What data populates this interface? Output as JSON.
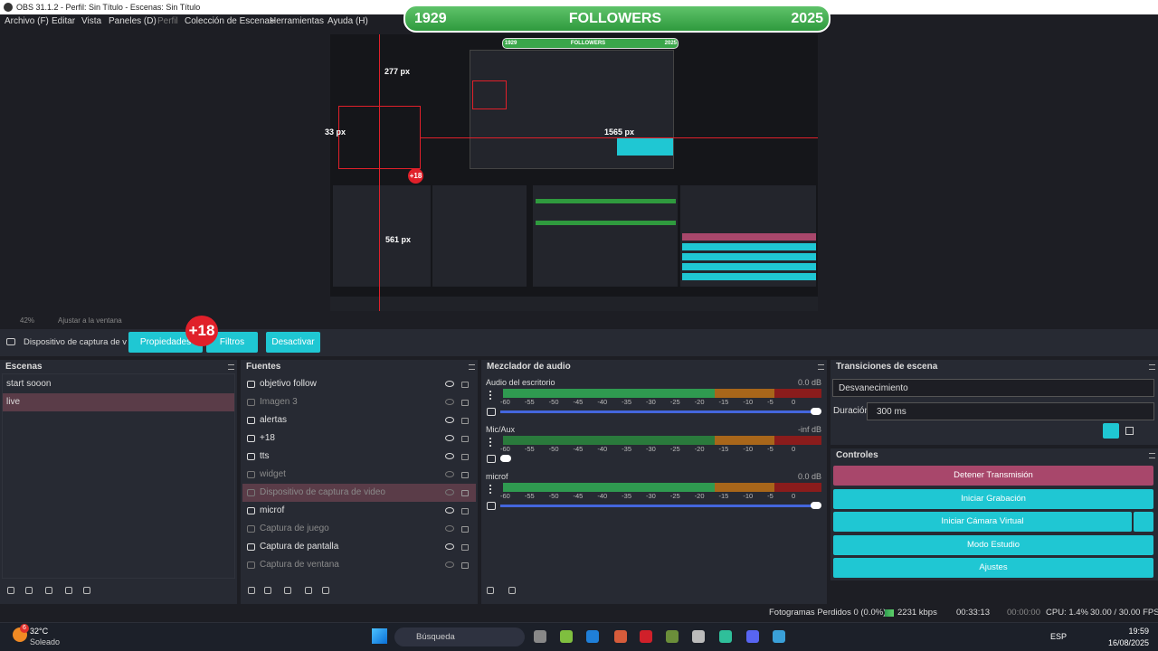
{
  "window": {
    "title": "OBS 31.1.2 - Perfil: Sin Título - Escenas: Sin Título"
  },
  "menu": [
    "Archivo (F)",
    "Editar",
    "Vista",
    "Paneles (D)",
    "Perfil",
    "Colección de Escenas",
    "Herramientas",
    "Ayuda (H)"
  ],
  "banner": {
    "left": "1929",
    "center": "FOLLOWERS",
    "right": "2025"
  },
  "preview": {
    "measures": [
      "277 px",
      "33 px",
      "1565 px",
      "561 px"
    ],
    "badge": "+18",
    "mini_banner": {
      "left": "1929",
      "center": "FOLLOWERS",
      "right": "2025"
    }
  },
  "zoom": {
    "value": "42%",
    "fit": "Ajustar a la ventana"
  },
  "source_toolbar": {
    "source": "Dispositivo de captura de v",
    "buttons": [
      "Propiedades",
      "Filtros",
      "Desactivar"
    ],
    "badge": "+18"
  },
  "scenes": {
    "title": "Escenas",
    "items": [
      "start sooon",
      "live"
    ],
    "selected": 1
  },
  "sources": {
    "title": "Fuentes",
    "selected": 6,
    "items": [
      {
        "name": "objetivo follow",
        "visible": true
      },
      {
        "name": "Imagen 3",
        "visible": false
      },
      {
        "name": "alertas",
        "visible": true
      },
      {
        "name": "+18",
        "visible": true
      },
      {
        "name": "tts",
        "visible": true
      },
      {
        "name": "widget",
        "visible": false
      },
      {
        "name": "Dispositivo de captura de video",
        "visible": false
      },
      {
        "name": "microf",
        "visible": true
      },
      {
        "name": "Captura de juego",
        "visible": false
      },
      {
        "name": "Captura de pantalla",
        "visible": true
      },
      {
        "name": "Captura de ventana",
        "visible": false
      }
    ]
  },
  "mixer": {
    "title": "Mezclador de audio",
    "scale": [
      -60,
      -55,
      -50,
      -45,
      -40,
      -35,
      -30,
      -25,
      -20,
      -15,
      -10,
      -5,
      0
    ],
    "channels": [
      {
        "name": "Audio del escritorio",
        "level": "0.0 dB"
      },
      {
        "name": "Mic/Aux",
        "level": "-inf dB"
      },
      {
        "name": "microf",
        "level": "0.0 dB"
      }
    ]
  },
  "transitions": {
    "title": "Transiciones de escena",
    "transition": "Desvanecimiento",
    "duration_label": "Duración",
    "duration": "300 ms"
  },
  "controls": {
    "title": "Controles",
    "buttons": [
      "Detener Transmisión",
      "Iniciar Grabación",
      "Iniciar Cámara Virtual",
      "Modo Estudio",
      "Ajustes"
    ]
  },
  "status": {
    "dropped": "Fotogramas Perdidos 0 (0.0%)",
    "bitrate": "2231 kbps",
    "stream_time": "00:33:13",
    "record_time": "00:00:00",
    "cpu": "CPU: 1.4%",
    "fps": "30.00 / 30.00 FPS"
  },
  "taskbar": {
    "temperature": "32°C",
    "weather": "Soleado",
    "weather_badge": "6",
    "search": "Búsqueda",
    "language": "ESP",
    "time": "19:59",
    "date": "16/08/2025"
  }
}
